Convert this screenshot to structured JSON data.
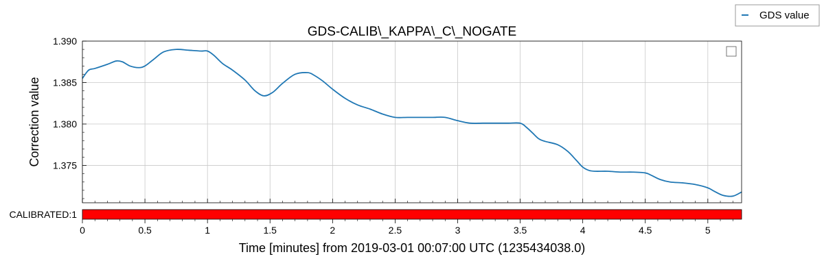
{
  "chart_data": {
    "type": "line",
    "title": "GDS-CALIB\\_KAPPA\\_C\\_NOGATE",
    "xlabel": "Time [minutes] from 2019-03-01 00:07:00 UTC (1235434038.0)",
    "ylabel": "Correction value",
    "xlim": [
      0,
      5.27
    ],
    "ylim": [
      1.3705,
      1.39
    ],
    "x_ticks": [
      0,
      0.5,
      1,
      1.5,
      2,
      2.5,
      3,
      3.5,
      4,
      4.5,
      5
    ],
    "x_tick_labels": [
      "0",
      "0.5",
      "1",
      "1.5",
      "2",
      "2.5",
      "3",
      "3.5",
      "4",
      "4.5",
      "5"
    ],
    "y_ticks": [
      1.375,
      1.38,
      1.385,
      1.39
    ],
    "y_tick_labels": [
      "1.375",
      "1.380",
      "1.385",
      "1.390"
    ],
    "grid": true,
    "legend_position": "top-right",
    "series": [
      {
        "name": "GDS value",
        "color": "#1f77b4",
        "x": [
          0,
          0.05,
          0.1,
          0.2,
          0.27,
          0.32,
          0.38,
          0.45,
          0.5,
          0.57,
          0.65,
          0.75,
          0.85,
          0.95,
          1.0,
          1.05,
          1.12,
          1.2,
          1.3,
          1.38,
          1.45,
          1.52,
          1.6,
          1.7,
          1.8,
          1.85,
          1.92,
          2.0,
          2.1,
          2.2,
          2.3,
          2.4,
          2.5,
          2.6,
          2.7,
          2.8,
          2.9,
          3.0,
          3.1,
          3.2,
          3.3,
          3.4,
          3.5,
          3.55,
          3.6,
          3.65,
          3.7,
          3.8,
          3.88,
          3.95,
          4.0,
          4.05,
          4.1,
          4.2,
          4.3,
          4.4,
          4.5,
          4.55,
          4.62,
          4.7,
          4.8,
          4.9,
          5.0,
          5.05,
          5.12,
          5.2,
          5.27
        ],
        "values": [
          1.3855,
          1.3865,
          1.3867,
          1.3872,
          1.3876,
          1.3875,
          1.387,
          1.3868,
          1.387,
          1.3878,
          1.3887,
          1.389,
          1.3889,
          1.3888,
          1.3888,
          1.3883,
          1.3873,
          1.3865,
          1.3853,
          1.384,
          1.3834,
          1.3838,
          1.3849,
          1.386,
          1.3862,
          1.3859,
          1.3852,
          1.3842,
          1.3831,
          1.3823,
          1.3818,
          1.3812,
          1.3808,
          1.3808,
          1.3808,
          1.3808,
          1.3808,
          1.3804,
          1.3801,
          1.3801,
          1.3801,
          1.3801,
          1.3801,
          1.3796,
          1.3789,
          1.3782,
          1.3779,
          1.3775,
          1.3767,
          1.3756,
          1.3748,
          1.3744,
          1.3743,
          1.3743,
          1.3742,
          1.3742,
          1.3741,
          1.3738,
          1.3733,
          1.373,
          1.3729,
          1.3727,
          1.3723,
          1.3719,
          1.3714,
          1.3713,
          1.3718
        ]
      }
    ],
    "segments": {
      "label": "CALIBRATED:1",
      "color": "#ff0000",
      "active_intervals": [
        [
          0,
          5.27
        ]
      ]
    }
  }
}
